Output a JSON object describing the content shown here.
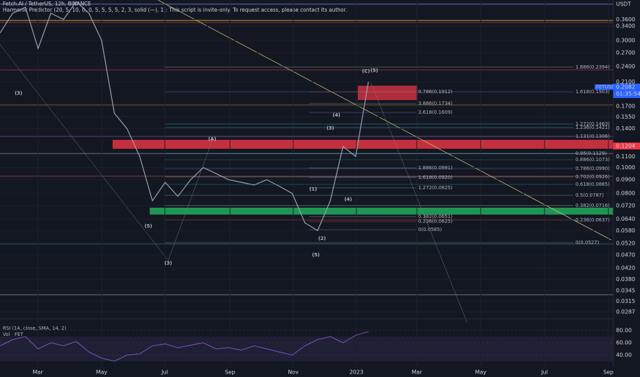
{
  "header": {
    "symbol": "Fetch.AI / TetherUS, 12h, BINANCE",
    "indicator": "Harmonic Predictor (20, 5, 10, 0, 0, 5, 5, 5, 5, 2, 3, solid (—), 1): This script is invite-only. To request access, please contact its author.",
    "currency": "USDT"
  },
  "price_axis": {
    "log": true,
    "ticks": [
      {
        "value": 0.36,
        "label": "0.3600"
      },
      {
        "value": 0.34,
        "label": "0.3400"
      },
      {
        "value": 0.3,
        "label": "0.3000"
      },
      {
        "value": 0.27,
        "label": "0.2700"
      },
      {
        "value": 0.24,
        "label": "0.2400"
      },
      {
        "value": 0.21,
        "label": "0.2100"
      },
      {
        "value": 0.17,
        "label": "0.1700"
      },
      {
        "value": 0.155,
        "label": "0.1550"
      },
      {
        "value": 0.14,
        "label": "0.1400"
      },
      {
        "value": 0.11,
        "label": "0.1100"
      },
      {
        "value": 0.1,
        "label": "0.1000"
      },
      {
        "value": 0.09,
        "label": "0.0900"
      },
      {
        "value": 0.08,
        "label": "0.0800"
      },
      {
        "value": 0.072,
        "label": "0.0720"
      },
      {
        "value": 0.064,
        "label": "0.0640"
      },
      {
        "value": 0.058,
        "label": "0.0580"
      },
      {
        "value": 0.052,
        "label": "0.0520"
      },
      {
        "value": 0.047,
        "label": "0.0470"
      },
      {
        "value": 0.042,
        "label": "0.0420"
      },
      {
        "value": 0.038,
        "label": "0.0380"
      },
      {
        "value": 0.0345,
        "label": "0.0345"
      },
      {
        "value": 0.0315,
        "label": "0.0315"
      },
      {
        "value": 0.0287,
        "label": "0.0287"
      }
    ]
  },
  "time_axis": [
    "Mar",
    "May",
    "Jul",
    "Sep",
    "Nov",
    "2023",
    "Mar",
    "May",
    "Jul",
    "Sep"
  ],
  "price_series": {
    "values": [
      0.32,
      0.38,
      0.4,
      0.28,
      0.38,
      0.36,
      0.42,
      0.38,
      0.3,
      0.16,
      0.14,
      0.11,
      0.075,
      0.088,
      0.078,
      0.09,
      0.1,
      0.095,
      0.09,
      0.088,
      0.086,
      0.09,
      0.085,
      0.08,
      0.062,
      0.058,
      0.075,
      0.12,
      0.11,
      0.21
    ],
    "color": "#9aa4b8"
  },
  "badges": {
    "ticker": "FETUSDT",
    "last_price": {
      "value": 0.2082,
      "label": "0.2082"
    },
    "countdown": "01:35:54",
    "level": {
      "value": 0.1204,
      "label": "0.1204"
    }
  },
  "fib_labels": [
    {
      "text": "1.886(0.2394)",
      "color": "#a5d6a7"
    },
    {
      "text": "1.618(0.1903)",
      "color": "#5b9cf6"
    },
    {
      "text": "0.786(0.1912)",
      "color": "#ef5350"
    },
    {
      "text": "3.886(0.1734)",
      "color": "#9598a1"
    },
    {
      "text": "3.618(0.1609)",
      "color": "#9c6ade"
    },
    {
      "text": "1.272(0.1463)",
      "color": "#4dd0e1"
    },
    {
      "text": "1.236(0.1421)",
      "color": "#4dd0e1"
    },
    {
      "text": "1.131(0.1306)",
      "color": "#9c6ade"
    },
    {
      "text": "0.95(0.1129)",
      "color": "#4dd0e1"
    },
    {
      "text": "0.886(0.1073)",
      "color": "#26a69a"
    },
    {
      "text": "1.886(0.0991)",
      "color": "#81c784"
    },
    {
      "text": "0.786(0.0990)",
      "color": "#5b9cf6"
    },
    {
      "text": "0.702(0.0926)",
      "color": "#d1d4dc"
    },
    {
      "text": "1.618(0.0920)",
      "color": "#5b9cf6"
    },
    {
      "text": "0.618(0.0865)",
      "color": "#26a69a"
    },
    {
      "text": "1.272(0.0825)",
      "color": "#4dd0e1"
    },
    {
      "text": "0.5(0.0787)",
      "color": "#81c784"
    },
    {
      "text": "0.382(0.0716)",
      "color": "#d1d4dc"
    },
    {
      "text": "0.382(0.0651)",
      "color": "#d1d4dc"
    },
    {
      "text": "0.236(0.0637)",
      "color": "#ef5350"
    },
    {
      "text": "0.236(0.0625)",
      "color": "#ef5350"
    },
    {
      "text": "0(0.0585)",
      "color": "#9598a1"
    },
    {
      "text": "0(0.0527)",
      "color": "#9598a1"
    }
  ],
  "wave_labels": [
    {
      "text": "(3)",
      "color": "#d1d4dc"
    },
    {
      "text": "(A)",
      "color": "#d1d4dc"
    },
    {
      "text": "(5)",
      "color": "#d1d4dc"
    },
    {
      "text": "(3)",
      "color": "#ef5350"
    },
    {
      "text": "(1)",
      "color": "#d1d4dc"
    },
    {
      "text": "(2)",
      "color": "#d1d4dc"
    },
    {
      "text": "(3)",
      "color": "#d1d4dc"
    },
    {
      "text": "(4)",
      "color": "#ef5350"
    },
    {
      "text": "(4)",
      "color": "#d1d4dc"
    },
    {
      "text": "(5)",
      "color": "#d1d4dc"
    },
    {
      "text": "(C)",
      "color": "#ef9a9a"
    },
    {
      "text": "(5)",
      "color": "#d1d4dc"
    }
  ],
  "rsi_pane": {
    "title": "RSI (14, close, SMA, 14, 2)",
    "volume": "Vol · FET",
    "ticks": [
      {
        "value": 80,
        "label": "80.00"
      },
      {
        "value": 60,
        "label": "60.00"
      },
      {
        "value": 40,
        "label": "40.00"
      }
    ],
    "values": [
      55,
      65,
      70,
      50,
      60,
      55,
      62,
      45,
      35,
      30,
      40,
      42,
      55,
      58,
      52,
      56,
      60,
      50,
      52,
      48,
      55,
      50,
      45,
      40,
      55,
      65,
      70,
      60,
      72,
      78
    ],
    "color": "#7e57c2"
  }
}
